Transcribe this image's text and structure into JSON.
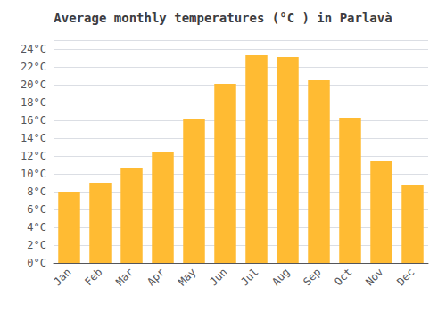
{
  "chart_data": {
    "type": "bar",
    "title": "Average monthly temperatures (°C ) in Parlavà",
    "categories": [
      "Jan",
      "Feb",
      "Mar",
      "Apr",
      "May",
      "Jun",
      "Jul",
      "Aug",
      "Sep",
      "Oct",
      "Nov",
      "Dec"
    ],
    "values": [
      8.0,
      9.0,
      10.7,
      12.5,
      16.1,
      20.1,
      23.3,
      23.1,
      20.5,
      16.3,
      11.4,
      8.8
    ],
    "color": "#FFBB33",
    "ylim": [
      0,
      25
    ],
    "yticks": [
      {
        "value": 0,
        "label": "0°C"
      },
      {
        "value": 2,
        "label": "2°C"
      },
      {
        "value": 4,
        "label": "4°C"
      },
      {
        "value": 6,
        "label": "6°C"
      },
      {
        "value": 8,
        "label": "8°C"
      },
      {
        "value": 10,
        "label": "10°C"
      },
      {
        "value": 12,
        "label": "12°C"
      },
      {
        "value": 14,
        "label": "14°C"
      },
      {
        "value": 16,
        "label": "16°C"
      },
      {
        "value": 18,
        "label": "18°C"
      },
      {
        "value": 20,
        "label": "20°C"
      },
      {
        "value": 22,
        "label": "22°C"
      },
      {
        "value": 24,
        "label": "24°C"
      }
    ],
    "grid": true
  }
}
